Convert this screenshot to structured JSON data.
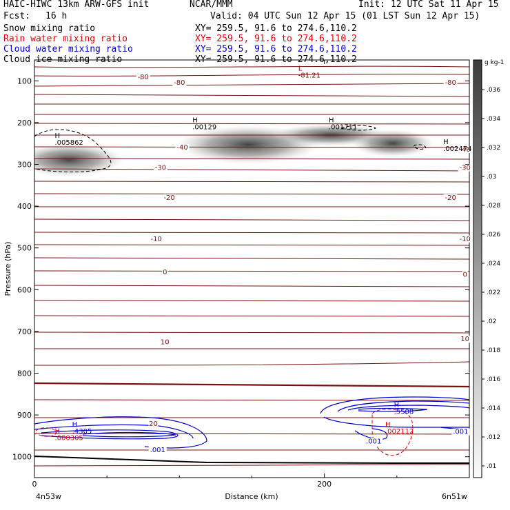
{
  "header": {
    "line1_left": "HAIC-HIWC 13km ARW-GFS init",
    "line1_mid": "NCAR/MMM",
    "line1_right": "Init: 12 UTC Sat 11 Apr 15",
    "fcst_label": "Fcst:",
    "fcst_value": "16 h",
    "valid": "Valid: 04 UTC Sun 12 Apr 15 (01 LST Sun 12 Apr 15)",
    "fields": [
      {
        "name": "Snow mixing ratio",
        "xy": "XY= 259.5, 91.6 to 274.6,110.2",
        "color": "#000000"
      },
      {
        "name": "Rain water mixing ratio",
        "xy": "XY= 259.5, 91.6 to 274.6,110.2",
        "color": "#e00000"
      },
      {
        "name": "Cloud water mixing ratio",
        "xy": "XY= 259.5, 91.6 to 274.6,110.2",
        "color": "#0000cc"
      },
      {
        "name": "Cloud ice mixing ratio",
        "xy": "XY= 259.5, 91.6 to 274.6,110.2",
        "color": "#000000"
      }
    ]
  },
  "chart_data": {
    "type": "contour",
    "xlabel": "Distance (km)",
    "ylabel": "Pressure (hPa)",
    "x_ticks": [
      0,
      200
    ],
    "x_range": [
      0,
      300
    ],
    "y_ticks": [
      100,
      200,
      300,
      400,
      500,
      600,
      700,
      800,
      900,
      1000
    ],
    "y_range": [
      50,
      1050
    ],
    "x_left_label": "4n53w",
    "x_right_label": "6n51w",
    "colorbar": {
      "unit": "g kg-1",
      "ticks": [
        ".036",
        ".034",
        ".032",
        ".03",
        ".028",
        ".026",
        ".024",
        ".022",
        ".02",
        ".018",
        ".016",
        ".014",
        ".012",
        ".01"
      ]
    },
    "temperature_labels": [
      {
        "text": "-80",
        "x": 75,
        "p": 90
      },
      {
        "text": "-80",
        "x": 100,
        "p": 103
      },
      {
        "text": "-80",
        "x": 287,
        "p": 103
      },
      {
        "text": "-40",
        "x": 102,
        "p": 258
      },
      {
        "text": "-40",
        "x": 297,
        "p": 263
      },
      {
        "text": "-30",
        "x": 87,
        "p": 307
      },
      {
        "text": "-30",
        "x": 297,
        "p": 307
      },
      {
        "text": "-20",
        "x": 93,
        "p": 378
      },
      {
        "text": "-20",
        "x": 287,
        "p": 378
      },
      {
        "text": "-10",
        "x": 84,
        "p": 477
      },
      {
        "text": "-10",
        "x": 297,
        "p": 477
      },
      {
        "text": "0",
        "x": 90,
        "p": 557
      },
      {
        "text": "0",
        "x": 297,
        "p": 562
      },
      {
        "text": "10",
        "x": 90,
        "p": 724
      },
      {
        "text": "10",
        "x": 297,
        "p": 717
      },
      {
        "text": "20",
        "x": 82,
        "p": 920
      }
    ],
    "extrema": [
      {
        "type": "L",
        "value": "-81.21",
        "x": 182,
        "p": 92,
        "color": "#800000"
      },
      {
        "type": "H",
        "value": ".005862",
        "x": 14,
        "p": 253,
        "color": "#000000"
      },
      {
        "type": "H",
        "value": ".00129",
        "x": 109,
        "p": 216,
        "color": "#000000"
      },
      {
        "type": "H",
        "value": ".001711",
        "x": 203,
        "p": 216,
        "color": "#000000"
      },
      {
        "type": "H",
        "value": ".002474",
        "x": 282,
        "p": 268,
        "color": "#000000"
      },
      {
        "type": "H",
        "value": ".5508",
        "x": 248,
        "p": 897,
        "color": "#0000cc"
      },
      {
        "type": "H",
        "value": ".4305",
        "x": 26,
        "p": 944,
        "color": "#0000cc"
      },
      {
        "type": "H",
        "value": ".000305",
        "x": 14,
        "p": 960,
        "color": "#e00000"
      },
      {
        "type": "H",
        "value": ".002112",
        "x": 242,
        "p": 944,
        "color": "#e00000"
      }
    ],
    "cloud_water_labels": [
      {
        "text": ".001",
        "x": 85,
        "p": 982
      },
      {
        "text": ".001",
        "x": 234,
        "p": 962
      },
      {
        "text": ".001",
        "x": 294,
        "p": 939
      }
    ]
  }
}
